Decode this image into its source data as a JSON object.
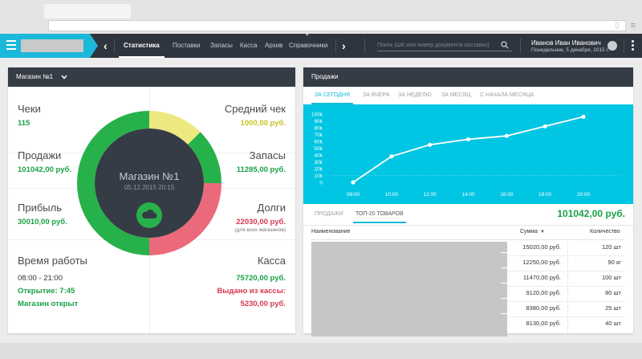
{
  "colors": {
    "accent": "#1ab8d9",
    "header_bg": "#2f353f",
    "panel_head_bg": "#363c46",
    "green": "#1aa147",
    "yellow": "#c7c424",
    "red": "#d8384f",
    "donut_green": "#27b14a",
    "donut_yellow": "#eee97f",
    "donut_red": "#ea6a7c",
    "donut_center": "#353c46",
    "chart_bg": "#00c5e3"
  },
  "nav": {
    "tabs": [
      "Статистика",
      "Поставки",
      "Запасы",
      "Касса",
      "Архив",
      "Справочники"
    ],
    "active_tab": "Статистика",
    "search_placeholder": "Поиск (ШК или номер документа поставки)"
  },
  "user": {
    "name": "Иванов Иван Иванович",
    "date": "Понедельник, 5 декабря, 2015 г."
  },
  "store_panel": {
    "store_name": "Магазин №1",
    "checks_label": "Чеки",
    "checks_value": "115",
    "avg_check_label": "Средний чек",
    "avg_check_value": "1000,00 руб.",
    "sales_label": "Продажи",
    "sales_value": "101042,00 руб.",
    "stock_label": "Запасы",
    "stock_value": "11285,00 руб.",
    "profit_label": "Прибыль",
    "profit_value": "30010,00 руб.",
    "debts_label": "Долги",
    "debts_value": "22030,00 руб.",
    "debts_note": "(для всех магазинов)",
    "work_time_label": "Время работы",
    "work_time_value": "08:00 - 21:00",
    "opening": "Открытие: 7:45",
    "store_status": "Магазин открыт",
    "cash_label": "Касса",
    "cash_value": "75720,00 руб.",
    "cash_out_label": "Выдано из кассы:",
    "cash_out_value": "5230,00 руб.",
    "donut_title": "Магазин №1",
    "donut_date": "05.12.2015  20:15",
    "donut_segments": [
      {
        "color": "#eee97f",
        "fraction": 0.125
      },
      {
        "color": "#27b14a",
        "fraction": 0.125
      },
      {
        "color": "#ea6a7c",
        "fraction": 0.25
      },
      {
        "color": "#27b14a",
        "fraction": 0.5
      }
    ]
  },
  "sales_panel": {
    "title": "Продажи",
    "period_tabs": [
      "ЗА СЕГОДНЯ",
      "ЗА ВЧЕРА",
      "ЗА НЕДЕЛЮ",
      "ЗА МЕСЯЦ",
      "С НАЧАЛА МЕСЯЦА"
    ],
    "active_period": "ЗА СЕГОДНЯ",
    "sub_tabs": [
      "ПРОДАЖИ",
      "ТОП-20 ТОВАРОВ"
    ],
    "active_sub_tab": "ТОП-20 ТОВАРОВ",
    "total": "101042,00 руб.",
    "table": {
      "headers": {
        "name": "Наименование",
        "sum": "Сумма",
        "qty": "Количество"
      },
      "rows": [
        {
          "sum": "15020,00 руб.",
          "qty": "120 шт"
        },
        {
          "sum": "12250,00 руб.",
          "qty": "90 кг"
        },
        {
          "sum": "11470,00 руб.",
          "qty": "100 шт"
        },
        {
          "sum": "9120,00 руб.",
          "qty": "80 шт"
        },
        {
          "sum": "8380,00 руб.",
          "qty": "25 шт"
        },
        {
          "sum": "8130,00 руб.",
          "qty": "40 шт"
        }
      ]
    }
  },
  "chart_data": {
    "type": "line",
    "x": [
      "08:00",
      "10:00",
      "12:00",
      "14:00",
      "16:00",
      "18:00",
      "20:00"
    ],
    "ytick_labels": [
      "0",
      "10k",
      "20k",
      "30k",
      "40k",
      "50k",
      "60k",
      "70k",
      "80k",
      "90k",
      "100k"
    ],
    "ylim": [
      0,
      100000
    ],
    "grid": false,
    "series": [
      {
        "values": [
          0,
          38000,
          55000,
          63000,
          68000,
          82000,
          96000
        ]
      }
    ]
  }
}
